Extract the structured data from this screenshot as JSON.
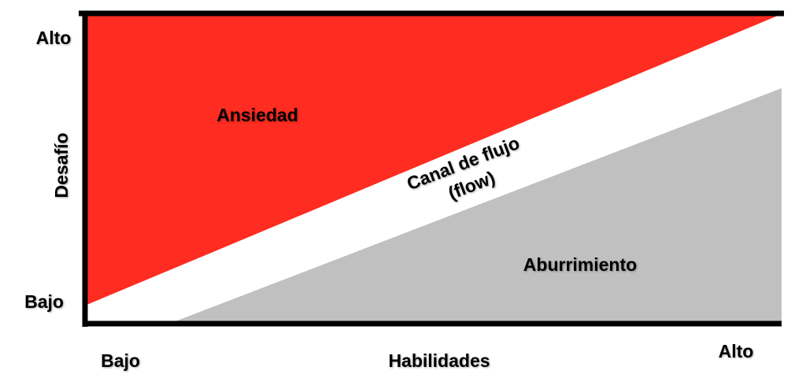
{
  "y_axis": {
    "label": "Desafío",
    "high": "Alto",
    "low": "Bajo"
  },
  "x_axis": {
    "label": "Habilidades",
    "low": "Bajo",
    "high": "Alto"
  },
  "regions": [
    {
      "label_lines": [
        "Ansiedad"
      ]
    },
    {
      "label_lines": [
        "Canal de flujo",
        "(flow)"
      ]
    },
    {
      "label_lines": [
        "Aburrimiento"
      ]
    }
  ]
}
